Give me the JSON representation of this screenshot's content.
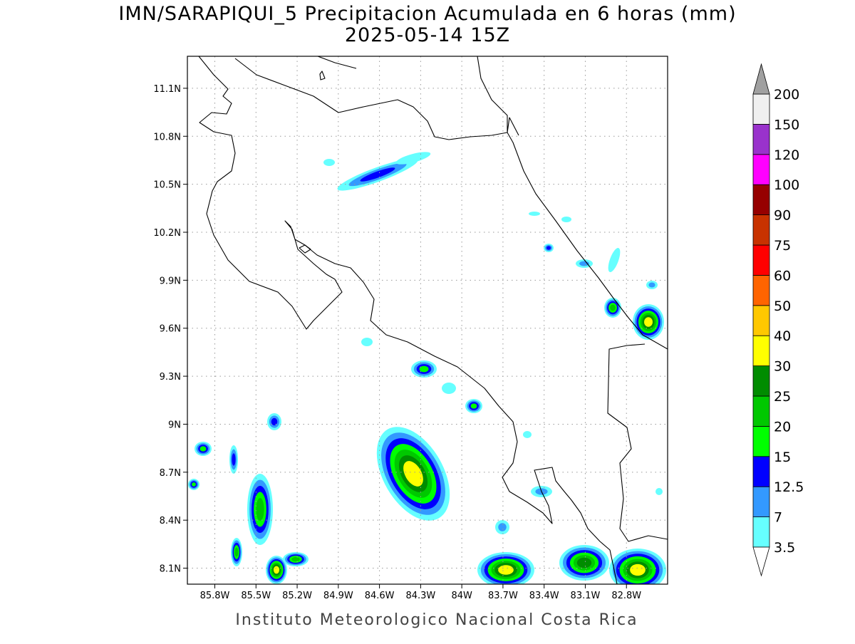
{
  "header": {
    "title": "IMN/SARAPIQUI_5 Precipitacion Acumulada en 6 horas (mm)",
    "subtitle": "2025-05-14 15Z"
  },
  "chart_data": {
    "type": "map",
    "xlim": [
      -86.0,
      -82.5
    ],
    "ylim": [
      8.0,
      11.3
    ],
    "xticks": [
      {
        "value": -85.8,
        "label": "85.8W"
      },
      {
        "value": -85.5,
        "label": "85.5W"
      },
      {
        "value": -85.2,
        "label": "85.2W"
      },
      {
        "value": -84.9,
        "label": "84.9W"
      },
      {
        "value": -84.6,
        "label": "84.6W"
      },
      {
        "value": -84.3,
        "label": "84.3W"
      },
      {
        "value": -84,
        "label": "84W"
      },
      {
        "value": -83.7,
        "label": "83.7W"
      },
      {
        "value": -83.4,
        "label": "83.4W"
      },
      {
        "value": -83.1,
        "label": "83.1W"
      },
      {
        "value": -82.8,
        "label": "82.8W"
      }
    ],
    "yticks": [
      {
        "value": 11.1,
        "label": "11.1N"
      },
      {
        "value": 10.8,
        "label": "10.8N"
      },
      {
        "value": 10.5,
        "label": "10.5N"
      },
      {
        "value": 10.2,
        "label": "10.2N"
      },
      {
        "value": 9.9,
        "label": "9.9N"
      },
      {
        "value": 9.6,
        "label": "9.6N"
      },
      {
        "value": 9.3,
        "label": "9.3N"
      },
      {
        "value": 9,
        "label": "9N"
      },
      {
        "value": 8.7,
        "label": "8.7N"
      },
      {
        "value": 8.4,
        "label": "8.4N"
      },
      {
        "value": 8.1,
        "label": "8.1N"
      }
    ],
    "grid": true
  },
  "colorbar": {
    "levels": [
      3.5,
      7,
      12.5,
      15,
      20,
      25,
      30,
      40,
      50,
      60,
      75,
      90,
      100,
      120,
      150,
      200
    ],
    "colors": [
      "#66ffff",
      "#3399ff",
      "#0000ff",
      "#00ff00",
      "#00c800",
      "#008c00",
      "#ffff00",
      "#ffc800",
      "#ff6400",
      "#ff0000",
      "#c83200",
      "#960000",
      "#ff00ff",
      "#9932cc",
      "#f0f0f0"
    ],
    "below_color": "#ffffff",
    "above_color": "#a0a0a0"
  },
  "footer": "Instituto Meteorologico Nacional Costa Rica"
}
